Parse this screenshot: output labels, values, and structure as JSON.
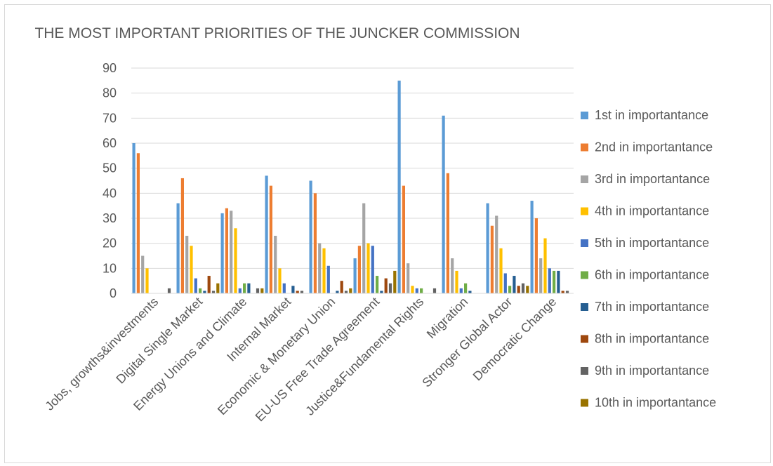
{
  "chart_data": {
    "type": "bar",
    "title": "THE MOST IMPORTANT PRIORITIES OF THE JUNCKER COMMISSION",
    "xlabel": "",
    "ylabel": "",
    "ylim": [
      0,
      90
    ],
    "yticks": [
      0,
      10,
      20,
      30,
      40,
      50,
      60,
      70,
      80,
      90
    ],
    "grid": true,
    "legend_position": "right",
    "categories": [
      "Jobs, growths&investments",
      "Digital Single Market",
      "Energy Unions and Climate",
      "Internal Market",
      "Economic & Monetary Union",
      "EU-US Free Trade Agreement",
      "Justice&Fundamental Rights",
      "Migration",
      "Stronger Global Actor",
      "Democratic Change"
    ],
    "series": [
      {
        "name": "1st in importantance",
        "color": "#5b9bd5",
        "values": [
          60,
          36,
          32,
          47,
          45,
          14,
          85,
          71,
          36,
          37
        ]
      },
      {
        "name": "2nd in importantance",
        "color": "#ed7d31",
        "values": [
          56,
          46,
          34,
          43,
          40,
          19,
          43,
          48,
          27,
          30
        ]
      },
      {
        "name": "3rd in importantance",
        "color": "#a5a5a5",
        "values": [
          15,
          23,
          33,
          23,
          20,
          36,
          12,
          14,
          31,
          14
        ]
      },
      {
        "name": "4th in importantance",
        "color": "#ffc000",
        "values": [
          10,
          19,
          26,
          10,
          18,
          20,
          3,
          9,
          18,
          22
        ]
      },
      {
        "name": "5th in importantance",
        "color": "#4472c4",
        "values": [
          0,
          6,
          2,
          4,
          11,
          19,
          2,
          2,
          8,
          10
        ]
      },
      {
        "name": "6th in importantance",
        "color": "#70ad47",
        "values": [
          0,
          2,
          4,
          0,
          0,
          7,
          2,
          4,
          3,
          9
        ]
      },
      {
        "name": "7th in importantance",
        "color": "#255e91",
        "values": [
          0,
          1,
          4,
          3,
          1,
          1,
          0,
          1,
          7,
          9
        ]
      },
      {
        "name": "8th in importantance",
        "color": "#9e480e",
        "values": [
          0,
          7,
          0,
          1,
          5,
          6,
          0,
          0,
          3,
          1
        ]
      },
      {
        "name": "9th in importantance",
        "color": "#636363",
        "values": [
          2,
          1,
          2,
          1,
          1,
          4,
          2,
          0,
          4,
          1
        ]
      },
      {
        "name": "10th in importantance",
        "color": "#997300",
        "values": [
          0,
          4,
          2,
          0,
          2,
          9,
          0,
          0,
          3,
          0
        ]
      }
    ]
  }
}
